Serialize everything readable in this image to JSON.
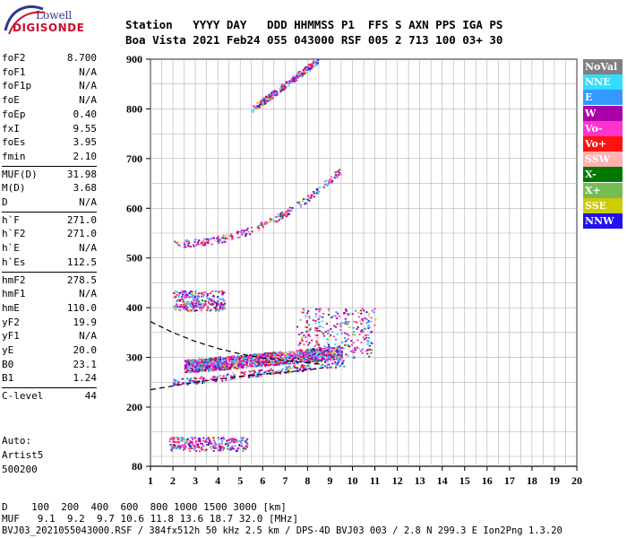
{
  "logo": {
    "line1": "Lowell",
    "line2": "DIGISONDE"
  },
  "header": {
    "row1": "Station   YYYY DAY   DDD HHMMSS P1  FFS S AXN PPS IGA PS",
    "row2": "Boa Vista 2021 Feb24 055 043000 RSF 005 2 713 100 03+ 30"
  },
  "params": [
    {
      "label": "foF2",
      "value": "8.700"
    },
    {
      "label": "foF1",
      "value": "N/A"
    },
    {
      "label": "foF1p",
      "value": "N/A"
    },
    {
      "label": "foE",
      "value": "N/A"
    },
    {
      "label": "foEp",
      "value": "0.40"
    },
    {
      "label": "fxI",
      "value": "9.55"
    },
    {
      "label": "foEs",
      "value": "3.95"
    },
    {
      "label": "fmin",
      "value": "2.10"
    },
    {
      "label": "MUF(D)",
      "value": "31.98"
    },
    {
      "label": "M(D)",
      "value": "3.68"
    },
    {
      "label": "D",
      "value": "N/A"
    },
    {
      "label": "h`F",
      "value": "271.0"
    },
    {
      "label": "h`F2",
      "value": "271.0"
    },
    {
      "label": "h`E",
      "value": "N/A"
    },
    {
      "label": "h`Es",
      "value": "112.5"
    },
    {
      "label": "hmF2",
      "value": "278.5"
    },
    {
      "label": "hmF1",
      "value": "N/A"
    },
    {
      "label": "hmE",
      "value": "110.0"
    },
    {
      "label": "yF2",
      "value": "19.9"
    },
    {
      "label": "yF1",
      "value": "N/A"
    },
    {
      "label": "yE",
      "value": "20.0"
    },
    {
      "label": "B0",
      "value": "23.1"
    },
    {
      "label": "B1",
      "value": "1.24"
    },
    {
      "label": "C-level",
      "value": "44"
    }
  ],
  "autoscale": {
    "line1": "Auto:",
    "line2": "Artist5",
    "line3": "500200"
  },
  "legend": [
    {
      "label": "NoVal",
      "color": "#808080"
    },
    {
      "label": "NNE",
      "color": "#33ddff"
    },
    {
      "label": "E",
      "color": "#3399ff"
    },
    {
      "label": "W",
      "color": "#aa00aa"
    },
    {
      "label": "Vo-",
      "color": "#ff33cc"
    },
    {
      "label": "Vo+",
      "color": "#ff1111"
    },
    {
      "label": "SSW",
      "color": "#ffb0b0"
    },
    {
      "label": "X-",
      "color": "#007700"
    },
    {
      "label": "X+",
      "color": "#77bb55"
    },
    {
      "label": "SSE",
      "color": "#cccc00"
    },
    {
      "label": "NNW",
      "color": "#2211ee"
    }
  ],
  "footer": {
    "d_row": "D    100  200  400  600  800 1000 1500 3000 [km]",
    "muf_row": "MUF   9.1  9.2  9.7 10.6 11.8 13.6 18.7 32.0 [MHz]",
    "info": "BVJ03_2021055043000.RSF / 384fx512h 50 kHz 2.5 km / DPS-4D BVJ03 003 / 2.8 N 299.3 E Ion2Png 1.3.20"
  },
  "chart_data": {
    "type": "scatter",
    "xlim": [
      1,
      20
    ],
    "ylim": [
      80,
      900
    ],
    "x_ticks": [
      1,
      2,
      3,
      4,
      5,
      6,
      7,
      8,
      9,
      10,
      11,
      12,
      13,
      14,
      15,
      16,
      17,
      18,
      19,
      20
    ],
    "y_ticks": [
      80,
      200,
      300,
      400,
      500,
      600,
      700,
      800,
      900
    ],
    "grid": true,
    "legend_position": "right",
    "clusters": [
      {
        "name": "F2 O-trace",
        "freq": [
          2.0,
          9.6
        ],
        "height": [
          250,
          320
        ]
      },
      {
        "name": "F2 dense echo band",
        "freq": [
          2.5,
          9.5
        ],
        "height": [
          275,
          335
        ]
      },
      {
        "name": "F2 spread",
        "freq": [
          7.5,
          11.0
        ],
        "height": [
          300,
          400
        ]
      },
      {
        "name": "2nd hop",
        "freq": [
          2.0,
          9.5
        ],
        "height": [
          520,
          710
        ]
      },
      {
        "name": "3rd hop",
        "freq": [
          5.5,
          8.5
        ],
        "height": [
          790,
          900
        ]
      },
      {
        "name": "Es",
        "freq": [
          1.8,
          5.3
        ],
        "height": [
          112,
          140
        ]
      },
      {
        "name": "Es 2-hop",
        "freq": [
          2.0,
          4.3
        ],
        "height": [
          395,
          435
        ]
      }
    ],
    "profile_lines": [
      {
        "name": "lower",
        "points": [
          [
            1.0,
            235
          ],
          [
            3.0,
            250
          ],
          [
            5.0,
            262
          ],
          [
            7.0,
            270
          ],
          [
            8.2,
            276
          ],
          [
            8.7,
            279
          ]
        ]
      },
      {
        "name": "upper",
        "points": [
          [
            1.0,
            372
          ],
          [
            2.0,
            350
          ],
          [
            3.0,
            332
          ],
          [
            4.0,
            318
          ],
          [
            5.0,
            307
          ],
          [
            6.0,
            299
          ],
          [
            7.0,
            294
          ],
          [
            8.0,
            289
          ],
          [
            8.7,
            286
          ]
        ]
      }
    ]
  }
}
